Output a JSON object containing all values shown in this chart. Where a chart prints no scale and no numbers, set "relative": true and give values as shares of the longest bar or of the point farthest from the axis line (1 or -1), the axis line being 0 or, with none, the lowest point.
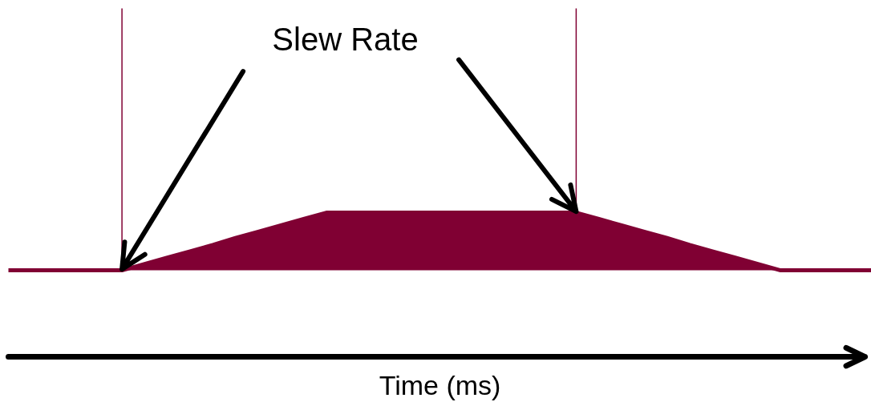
{
  "chart_data": {
    "type": "area",
    "relative": true,
    "color": "#800033",
    "xlabel": "Time (ms)",
    "categories": [
      null,
      null,
      null,
      null,
      null,
      null,
      null,
      null,
      null,
      null,
      null,
      null,
      null,
      null,
      null,
      null,
      null,
      null,
      null,
      null,
      null,
      null,
      null,
      null,
      null,
      null,
      null,
      null,
      null,
      null,
      null,
      null,
      null,
      null,
      null,
      null,
      null,
      null,
      null
    ],
    "values": [
      0,
      0,
      0,
      0,
      0,
      0,
      0.11,
      0.22,
      0.33,
      0.44,
      0.56,
      0.67,
      0.78,
      0.89,
      1,
      1,
      1,
      1,
      1,
      1,
      1,
      1,
      1,
      1,
      1,
      1,
      0.89,
      0.78,
      0.67,
      0.56,
      0.44,
      0.33,
      0.22,
      0.11,
      0,
      0,
      0,
      0,
      0
    ],
    "annotations": [
      "Slew Rate"
    ]
  }
}
